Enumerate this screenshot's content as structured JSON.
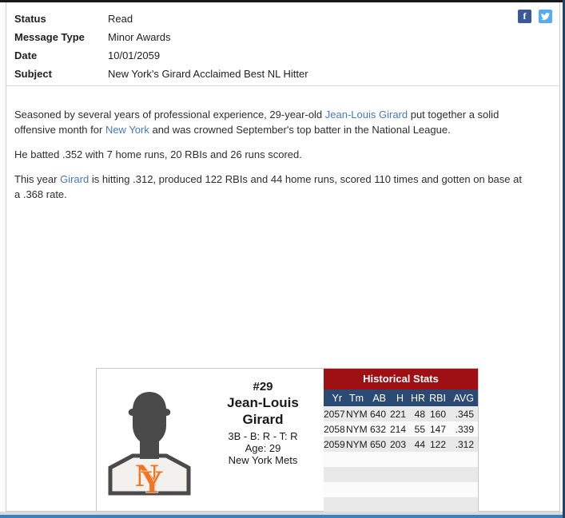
{
  "window": {
    "accent_red": "#9e1014",
    "accent_navy": "#2b4a73",
    "link_blue": "#4679bd",
    "facebook_blue": "#3b5998",
    "twitter_blue": "#55acee",
    "bottom_bar_blue": "#3d7ebc"
  },
  "meta": {
    "rows": [
      {
        "label": "Status",
        "value": "Read"
      },
      {
        "label": "Message Type",
        "value": "Minor Awards"
      },
      {
        "label": "Date",
        "value": "10/01/2059"
      },
      {
        "label": "Subject",
        "value": "New York's Girard Acclaimed Best NL Hitter"
      }
    ]
  },
  "social": {
    "facebook_glyph": "f"
  },
  "article": {
    "paragraphs": [
      {
        "segments": [
          {
            "text": "Seasoned by several years of professional experience, 29-year-old "
          },
          {
            "text": "Jean-Louis Girard",
            "link": true
          },
          {
            "text": " put together a solid offensive month for "
          },
          {
            "text": "New York",
            "link": true
          },
          {
            "text": " and was crowned September's top batter in the National League."
          }
        ]
      },
      {
        "segments": [
          {
            "text": "He batted .352 with 7 home runs, 20 RBIs and 26 runs scored."
          }
        ]
      },
      {
        "segments": [
          {
            "text": "This year "
          },
          {
            "text": "Girard",
            "link": true
          },
          {
            "text": " is hitting .312, produced 122 RBIs and 44 home runs, scored 110 times and gotten on base at a .368 rate."
          }
        ]
      }
    ]
  },
  "player_card": {
    "number": "#29",
    "first_name": "Jean-Louis",
    "last_name": "Girard",
    "position_line": "3B - B: R - T: R",
    "age_line": "Age: 29",
    "team": "New York Mets",
    "logo_letters": {
      "n": "N",
      "y": "Y"
    }
  },
  "stats": {
    "title": "Historical Stats",
    "columns": [
      "Yr",
      "Tm",
      "AB",
      "H",
      "HR",
      "RBI",
      "AVG"
    ],
    "rows": [
      [
        "2057",
        "NYM",
        "640",
        "221",
        "48",
        "160",
        ".345"
      ],
      [
        "2058",
        "NYM",
        "632",
        "214",
        "55",
        "147",
        ".339"
      ],
      [
        "2059",
        "NYM",
        "650",
        "203",
        "44",
        "122",
        ".312"
      ]
    ],
    "empty_row_count": 4
  }
}
